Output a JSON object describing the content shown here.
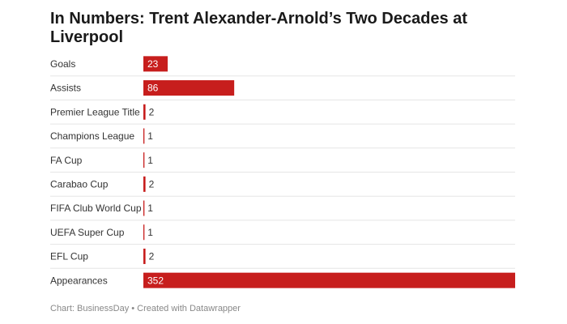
{
  "chart_data": {
    "type": "bar",
    "orientation": "horizontal",
    "title": "In Numbers: Trent Alexander-Arnold’s Two Decades at Liverpool",
    "categories": [
      "Goals",
      "Assists",
      "Premier League Title",
      "Champions League",
      "FA Cup",
      "Carabao Cup",
      "FIFA Club World Cup",
      "UEFA Super Cup",
      "EFL Cup",
      "Appearances"
    ],
    "values": [
      23,
      86,
      2,
      1,
      1,
      2,
      1,
      1,
      2,
      352
    ],
    "color": "#c71e1d",
    "footer": "Chart: BusinessDay • Created with Datawrapper"
  }
}
